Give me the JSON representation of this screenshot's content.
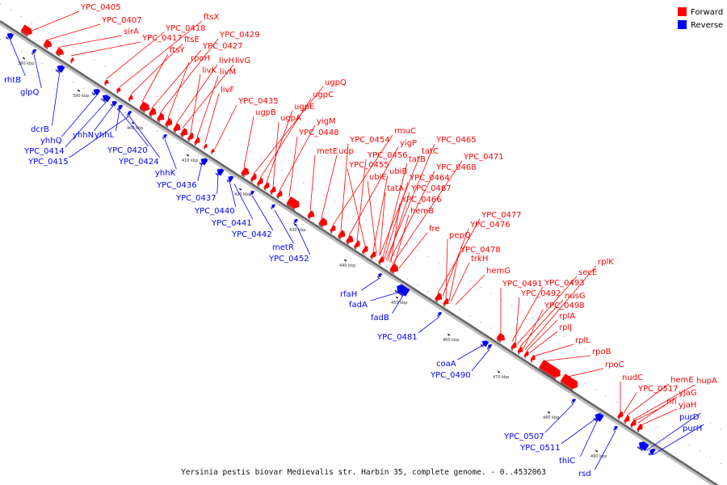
{
  "legend": {
    "forward": {
      "label": "Forward",
      "color": "#ff0000"
    },
    "reverse": {
      "label": "Reverse",
      "color": "#0000ff"
    }
  },
  "caption": "Yersinia pestis biovar Medievalis str. Harbin 35, complete genome. - 0..4532063",
  "ticks": [
    {
      "label": "380 kbp"
    },
    {
      "label": "390 kbp"
    },
    {
      "label": "400 kbp"
    },
    {
      "label": "410 kbp"
    },
    {
      "label": "420 kbp"
    },
    {
      "label": "430 kbp"
    },
    {
      "label": "440 kbp"
    },
    {
      "label": "450 kbp"
    },
    {
      "label": "460 kbp"
    },
    {
      "label": "470 kbp"
    },
    {
      "label": "480 kbp"
    },
    {
      "label": "490 kbp"
    }
  ],
  "forward_genes": [
    {
      "name": "YPC_0405"
    },
    {
      "name": "YPC_0407"
    },
    {
      "name": "sirA"
    },
    {
      "name": "YPC_0417"
    },
    {
      "name": "YPC_0418"
    },
    {
      "name": "ftsX"
    },
    {
      "name": "ftsE"
    },
    {
      "name": "ftsY"
    },
    {
      "name": "YPC_0427"
    },
    {
      "name": "YPC_0429"
    },
    {
      "name": "rpoH"
    },
    {
      "name": "livH"
    },
    {
      "name": "livG"
    },
    {
      "name": "livK"
    },
    {
      "name": "livM"
    },
    {
      "name": "livF"
    },
    {
      "name": "YPC_0435"
    },
    {
      "name": "ugpB"
    },
    {
      "name": "ugpQ"
    },
    {
      "name": "ugpC"
    },
    {
      "name": "ugpE"
    },
    {
      "name": "ugpA"
    },
    {
      "name": "yigM"
    },
    {
      "name": "YPC_0448"
    },
    {
      "name": "metE"
    },
    {
      "name": "udp"
    },
    {
      "name": "rmuC"
    },
    {
      "name": "YPC_0454"
    },
    {
      "name": "yigP"
    },
    {
      "name": "YPC_0456"
    },
    {
      "name": "YPC_0455"
    },
    {
      "name": "ubiB"
    },
    {
      "name": "tatC"
    },
    {
      "name": "YPC_0465"
    },
    {
      "name": "tatB"
    },
    {
      "name": "ubiE"
    },
    {
      "name": "YPC_0471"
    },
    {
      "name": "YPC_0468"
    },
    {
      "name": "YPC_0464"
    },
    {
      "name": "tatA"
    },
    {
      "name": "YPC_0467"
    },
    {
      "name": "YPC_0466"
    },
    {
      "name": "hemB"
    },
    {
      "name": "fre"
    },
    {
      "name": "YPC_0477"
    },
    {
      "name": "YPC_0476"
    },
    {
      "name": "pepQ"
    },
    {
      "name": "YPC_0478"
    },
    {
      "name": "trkH"
    },
    {
      "name": "hemG"
    },
    {
      "name": "rplK"
    },
    {
      "name": "secE"
    },
    {
      "name": "YPC_0491"
    },
    {
      "name": "YPC_0493"
    },
    {
      "name": "YPC_0492"
    },
    {
      "name": "nusG"
    },
    {
      "name": "YPC_0498"
    },
    {
      "name": "rplA"
    },
    {
      "name": "rplJ"
    },
    {
      "name": "rplL"
    },
    {
      "name": "rpoB"
    },
    {
      "name": "rpoC"
    },
    {
      "name": "nudC"
    },
    {
      "name": "hemE"
    },
    {
      "name": "hupA"
    },
    {
      "name": "YPC_0517"
    },
    {
      "name": "yjaG"
    },
    {
      "name": "nfi"
    },
    {
      "name": "yjaH"
    }
  ],
  "reverse_genes": [
    {
      "name": "rhtB"
    },
    {
      "name": "glpQ"
    },
    {
      "name": "dcrB"
    },
    {
      "name": "yhhQ"
    },
    {
      "name": "YPC_0414"
    },
    {
      "name": "yhhN"
    },
    {
      "name": "yhhL"
    },
    {
      "name": "YPC_0415"
    },
    {
      "name": "YPC_0420"
    },
    {
      "name": "YPC_0424"
    },
    {
      "name": "yhhK"
    },
    {
      "name": "YPC_0436"
    },
    {
      "name": "YPC_0437"
    },
    {
      "name": "YPC_0440"
    },
    {
      "name": "YPC_0441"
    },
    {
      "name": "YPC_0442"
    },
    {
      "name": "metR"
    },
    {
      "name": "YPC_0452"
    },
    {
      "name": "rfaH"
    },
    {
      "name": "fadA"
    },
    {
      "name": "fadB"
    },
    {
      "name": "YPC_0481"
    },
    {
      "name": "coaA"
    },
    {
      "name": "YPC_0490"
    },
    {
      "name": "YPC_0507"
    },
    {
      "name": "YPC_0511"
    },
    {
      "name": "thiC"
    },
    {
      "name": "rsd"
    },
    {
      "name": "purD"
    },
    {
      "name": "purH"
    }
  ]
}
